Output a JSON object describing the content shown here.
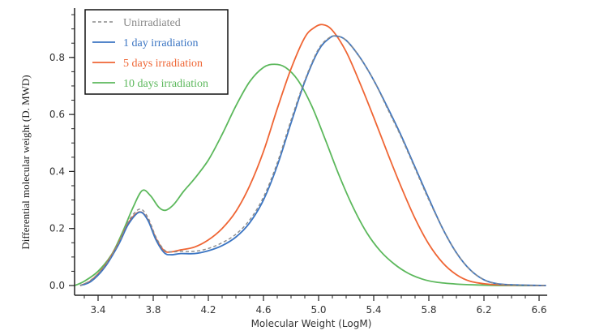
{
  "chart_data": {
    "type": "line",
    "title": "",
    "xlabel": "Molecular Weight (LogM)",
    "ylabel": "Differential molecular weight (D. MWD)",
    "xlim": [
      3.23,
      6.66
    ],
    "ylim": [
      -0.03,
      0.96
    ],
    "x_ticks": [
      "3.4",
      "3.8",
      "4.2",
      "4.6",
      "5.0",
      "5.4",
      "5.8",
      "6.2",
      "6.6"
    ],
    "x_tick_values": [
      3.4,
      3.8,
      4.2,
      4.6,
      5.0,
      5.4,
      5.8,
      6.2,
      6.6
    ],
    "x_minor_step": 0.1,
    "y_ticks": [
      "0.0",
      "0.2",
      "0.4",
      "0.6",
      "0.8"
    ],
    "y_tick_values": [
      0.0,
      0.2,
      0.4,
      0.6,
      0.8
    ],
    "y_minor_step": 0.05,
    "grid": false,
    "legend_position": "top-left",
    "series": [
      {
        "name": "Unirradiated",
        "color": "#8a8a8a",
        "dashed": true,
        "x": [
          3.27,
          3.35,
          3.45,
          3.55,
          3.62,
          3.7,
          3.76,
          3.82,
          3.88,
          3.93,
          4.0,
          4.1,
          4.2,
          4.3,
          4.4,
          4.5,
          4.6,
          4.7,
          4.8,
          4.9,
          5.0,
          5.08,
          5.13,
          5.2,
          5.3,
          5.4,
          5.5,
          5.6,
          5.7,
          5.8,
          5.9,
          6.0,
          6.1,
          6.2,
          6.3,
          6.45,
          6.65
        ],
        "y": [
          0.0,
          0.02,
          0.07,
          0.15,
          0.225,
          0.268,
          0.24,
          0.17,
          0.125,
          0.118,
          0.12,
          0.12,
          0.13,
          0.15,
          0.18,
          0.23,
          0.31,
          0.43,
          0.58,
          0.72,
          0.83,
          0.87,
          0.875,
          0.86,
          0.8,
          0.72,
          0.62,
          0.52,
          0.41,
          0.3,
          0.2,
          0.115,
          0.055,
          0.02,
          0.006,
          0.002,
          0.0
        ]
      },
      {
        "name": "1 day irradiation",
        "color": "#3b75c3",
        "dashed": false,
        "x": [
          3.27,
          3.35,
          3.45,
          3.55,
          3.62,
          3.7,
          3.76,
          3.82,
          3.88,
          3.93,
          4.0,
          4.1,
          4.2,
          4.3,
          4.4,
          4.5,
          4.6,
          4.7,
          4.8,
          4.9,
          5.0,
          5.08,
          5.13,
          5.2,
          5.3,
          5.4,
          5.5,
          5.6,
          5.7,
          5.8,
          5.9,
          6.0,
          6.1,
          6.2,
          6.3,
          6.45,
          6.65
        ],
        "y": [
          0.0,
          0.015,
          0.065,
          0.145,
          0.215,
          0.257,
          0.23,
          0.16,
          0.115,
          0.108,
          0.112,
          0.112,
          0.122,
          0.14,
          0.17,
          0.22,
          0.3,
          0.42,
          0.57,
          0.715,
          0.825,
          0.868,
          0.875,
          0.86,
          0.8,
          0.72,
          0.625,
          0.525,
          0.415,
          0.305,
          0.2,
          0.115,
          0.055,
          0.02,
          0.006,
          0.002,
          0.0
        ]
      },
      {
        "name": "5 days irradiation",
        "color": "#ef6534",
        "dashed": false,
        "x": [
          3.27,
          3.35,
          3.45,
          3.55,
          3.62,
          3.7,
          3.76,
          3.82,
          3.88,
          3.93,
          4.0,
          4.1,
          4.2,
          4.3,
          4.4,
          4.5,
          4.6,
          4.7,
          4.8,
          4.9,
          4.97,
          5.03,
          5.1,
          5.2,
          5.3,
          5.4,
          5.5,
          5.6,
          5.7,
          5.8,
          5.9,
          6.0,
          6.1,
          6.25,
          6.45,
          6.65
        ],
        "y": [
          0.0,
          0.018,
          0.07,
          0.15,
          0.22,
          0.258,
          0.232,
          0.165,
          0.122,
          0.118,
          0.125,
          0.135,
          0.16,
          0.2,
          0.26,
          0.35,
          0.47,
          0.62,
          0.76,
          0.87,
          0.905,
          0.915,
          0.895,
          0.82,
          0.71,
          0.59,
          0.465,
          0.345,
          0.235,
          0.145,
          0.08,
          0.038,
          0.015,
          0.004,
          0.001,
          0.0
        ]
      },
      {
        "name": "10 days irradiation",
        "color": "#5cb85c",
        "dashed": false,
        "x": [
          3.23,
          3.3,
          3.4,
          3.5,
          3.58,
          3.65,
          3.72,
          3.78,
          3.84,
          3.89,
          3.95,
          4.02,
          4.1,
          4.2,
          4.3,
          4.4,
          4.5,
          4.6,
          4.68,
          4.76,
          4.85,
          4.95,
          5.05,
          5.15,
          5.25,
          5.35,
          5.45,
          5.55,
          5.65,
          5.75,
          5.85,
          6.0,
          6.15,
          6.35,
          6.65
        ],
        "y": [
          0.0,
          0.015,
          0.05,
          0.11,
          0.19,
          0.27,
          0.333,
          0.315,
          0.275,
          0.264,
          0.285,
          0.33,
          0.375,
          0.44,
          0.53,
          0.63,
          0.715,
          0.765,
          0.776,
          0.765,
          0.72,
          0.63,
          0.51,
          0.385,
          0.275,
          0.185,
          0.12,
          0.075,
          0.043,
          0.023,
          0.012,
          0.005,
          0.002,
          0.0,
          0.0
        ]
      }
    ]
  }
}
